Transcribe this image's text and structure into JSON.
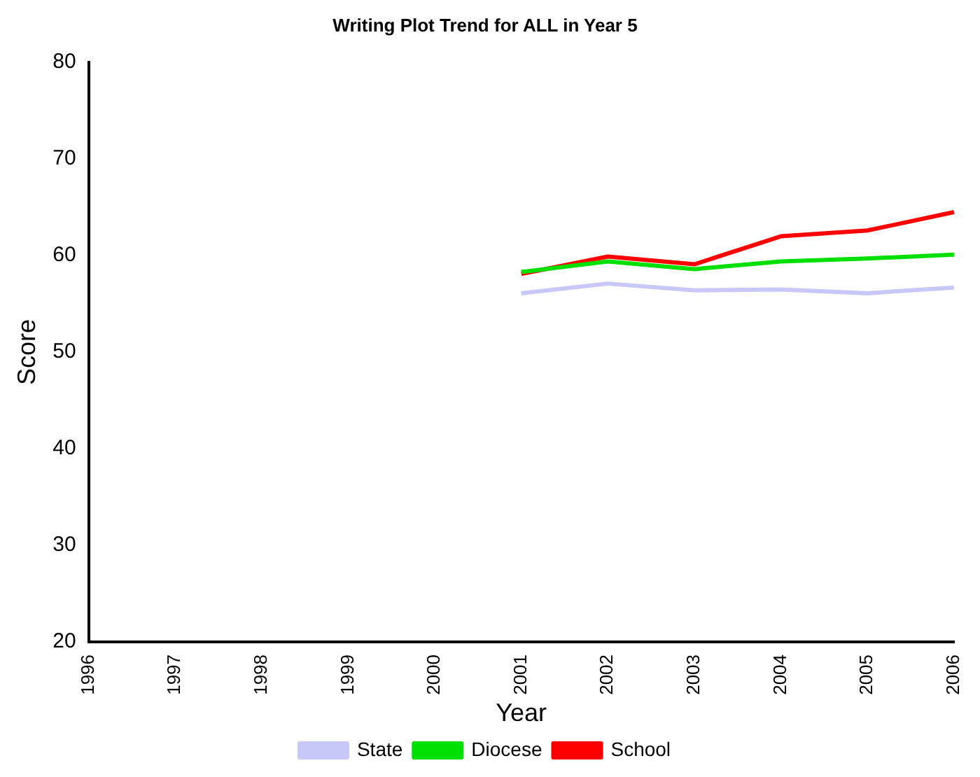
{
  "chart_data": {
    "type": "line",
    "title": "Writing Plot Trend for ALL in Year 5",
    "xlabel": "Year",
    "ylabel": "Score",
    "categories": [
      "1996",
      "1997",
      "1998",
      "1999",
      "2000",
      "2001",
      "2002",
      "2003",
      "2004",
      "2005",
      "2006"
    ],
    "series": [
      {
        "name": "State",
        "color": "#c8c8f8",
        "values": [
          null,
          null,
          null,
          null,
          null,
          56.1,
          57.1,
          56.4,
          56.5,
          56.1,
          56.7
        ]
      },
      {
        "name": "Diocese",
        "color": "#00e000",
        "values": [
          null,
          null,
          null,
          null,
          null,
          58.3,
          59.4,
          58.6,
          59.4,
          59.7,
          60.1
        ]
      },
      {
        "name": "School",
        "color": "#ff0000",
        "values": [
          null,
          null,
          null,
          null,
          null,
          58.1,
          59.9,
          59.1,
          62.0,
          62.6,
          64.5
        ]
      }
    ],
    "ylim": [
      20,
      80
    ],
    "yticks": [
      20,
      30,
      40,
      50,
      60,
      70,
      80
    ],
    "grid": false,
    "legend": "bottom",
    "marker": "none",
    "line_style": "solid"
  }
}
